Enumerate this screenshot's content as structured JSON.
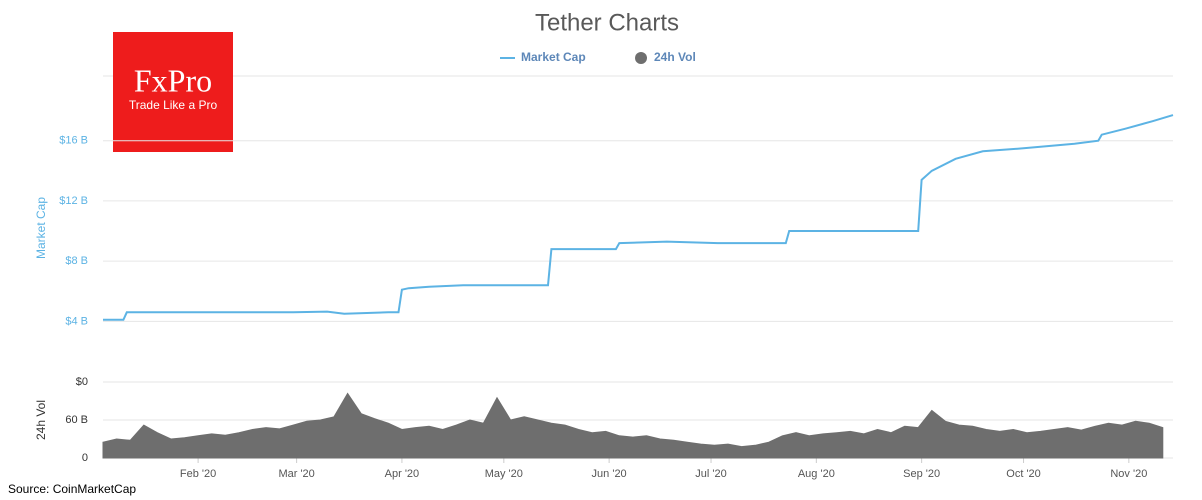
{
  "chart_data": [
    {
      "type": "line",
      "title": "Tether Charts",
      "logo_name": "FxPro",
      "logo_tagline": "Trade Like a Pro",
      "ylabel": "Market Cap",
      "x": [
        4,
        10,
        11,
        20,
        40,
        60,
        70,
        75,
        88,
        91,
        92,
        94,
        100,
        110,
        120,
        135,
        136,
        150,
        155,
        156,
        170,
        185,
        205,
        206,
        220,
        244,
        245,
        248,
        255,
        263,
        275,
        290,
        297,
        298,
        305,
        313,
        319
      ],
      "series": [
        {
          "name": "Market Cap",
          "color": "#5cb3e4",
          "values": [
            4.1,
            4.1,
            4.6,
            4.6,
            4.6,
            4.6,
            4.65,
            4.5,
            4.6,
            4.6,
            6.1,
            6.2,
            6.3,
            6.4,
            6.4,
            6.4,
            8.8,
            8.8,
            8.8,
            9.2,
            9.3,
            9.2,
            9.2,
            10.0,
            10.0,
            10.0,
            13.4,
            14.0,
            14.8,
            15.3,
            15.5,
            15.8,
            16.0,
            16.4,
            16.8,
            17.3,
            17.7
          ]
        }
      ],
      "xlim": [
        4,
        319
      ],
      "ylim": [
        1.1,
        20.3
      ],
      "yticks": [
        {
          "value": 4,
          "label": "$4 B"
        },
        {
          "value": 8,
          "label": "$8 B"
        },
        {
          "value": 12,
          "label": "$12 B"
        },
        {
          "value": 16,
          "label": "$16 B"
        }
      ],
      "grid": true
    },
    {
      "type": "area",
      "ylabel": "24h Vol",
      "source": "Source: CoinMarketCap",
      "x": [
        4,
        8,
        12,
        16,
        20,
        24,
        28,
        32,
        36,
        40,
        44,
        48,
        52,
        56,
        60,
        64,
        68,
        72,
        76,
        80,
        84,
        88,
        92,
        96,
        100,
        104,
        108,
        112,
        116,
        120,
        124,
        128,
        132,
        136,
        140,
        144,
        148,
        152,
        156,
        160,
        164,
        168,
        172,
        176,
        180,
        184,
        188,
        192,
        196,
        200,
        204,
        208,
        212,
        216,
        220,
        224,
        228,
        232,
        236,
        240,
        244,
        248,
        252,
        256,
        260,
        264,
        268,
        272,
        276,
        280,
        284,
        288,
        292,
        296,
        300,
        304,
        308,
        312,
        316
      ],
      "series": [
        {
          "name": "24h Vol",
          "color": "#6e6e6e",
          "values": [
            25,
            30,
            28,
            52,
            40,
            30,
            32,
            35,
            38,
            36,
            40,
            45,
            48,
            46,
            52,
            58,
            60,
            65,
            102,
            70,
            62,
            55,
            45,
            48,
            50,
            45,
            52,
            60,
            55,
            95,
            60,
            65,
            60,
            55,
            52,
            45,
            40,
            42,
            35,
            33,
            35,
            30,
            28,
            25,
            22,
            20,
            22,
            18,
            20,
            25,
            35,
            40,
            35,
            38,
            40,
            42,
            38,
            45,
            40,
            50,
            48,
            75,
            58,
            52,
            50,
            45,
            42,
            45,
            40,
            42,
            45,
            48,
            44,
            50,
            55,
            52,
            58,
            55,
            48
          ]
        }
      ],
      "xlim": [
        4,
        319
      ],
      "ylim": [
        0,
        120
      ],
      "yticks": [
        0,
        {
          "value": 60,
          "label": "60 B"
        },
        {
          "value": 120,
          "label": "$0"
        }
      ],
      "xticks": [
        {
          "value": 32,
          "label": "Feb '20"
        },
        {
          "value": 61,
          "label": "Mar '20"
        },
        {
          "value": 92,
          "label": "Apr '20"
        },
        {
          "value": 122,
          "label": "May '20"
        },
        {
          "value": 153,
          "label": "Jun '20"
        },
        {
          "value": 183,
          "label": "Jul '20"
        },
        {
          "value": 214,
          "label": "Aug '20"
        },
        {
          "value": 245,
          "label": "Sep '20"
        },
        {
          "value": 275,
          "label": "Oct '20"
        },
        {
          "value": 306,
          "label": "Nov '20"
        }
      ],
      "grid": true
    }
  ]
}
